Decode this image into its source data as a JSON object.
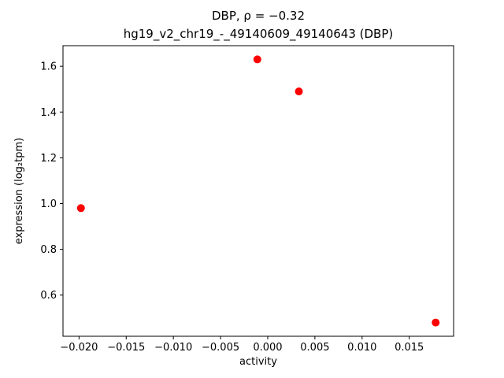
{
  "title_line1": "DBP, ρ = −0.32",
  "title_line2": "hg19_v2_chr19_-_49140609_49140643 (DBP)",
  "chart_data": {
    "type": "scatter",
    "title": "DBP, ρ = −0.32\nhg19_v2_chr19_-_49140609_49140643 (DBP)",
    "xlabel": "activity",
    "ylabel": "expression (log₂tpm)",
    "marker_color": "#ff0000",
    "marker_size_px": 5,
    "grid": false,
    "legend_position": "none",
    "xlim": [
      -0.0217,
      0.0197
    ],
    "ylim": [
      0.42,
      1.69
    ],
    "xticks": [
      -0.02,
      -0.015,
      -0.01,
      -0.005,
      0.0,
      0.005,
      0.01,
      0.015
    ],
    "xtick_labels": [
      "−0.020",
      "−0.015",
      "−0.010",
      "−0.005",
      "0.000",
      "0.005",
      "0.010",
      "0.015"
    ],
    "yticks": [
      0.6,
      0.8,
      1.0,
      1.2,
      1.4,
      1.6
    ],
    "ytick_labels": [
      "0.6",
      "0.8",
      "1.0",
      "1.2",
      "1.4",
      "1.6"
    ],
    "points": [
      {
        "x": -0.0198,
        "y": 0.98
      },
      {
        "x": -0.0011,
        "y": 1.63
      },
      {
        "x": 0.0033,
        "y": 1.49
      },
      {
        "x": 0.0178,
        "y": 0.48
      }
    ]
  }
}
